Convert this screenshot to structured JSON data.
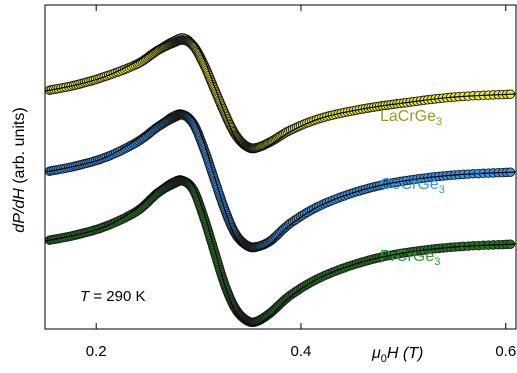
{
  "chart_data": {
    "type": "scatter",
    "title": "",
    "xlabel": "μ0H (T)",
    "xlabel_parts": {
      "mu": "μ",
      "sub": "0",
      "rest": "H (T)"
    },
    "ylabel": "dP/dH (arb. units)",
    "ylabel_parts": {
      "italic": "dP/dH",
      "rest": " (arb. units)"
    },
    "xlim": [
      0.15,
      0.61
    ],
    "ylim": [
      0,
      1
    ],
    "x_ticks": [
      0.2,
      0.4,
      0.6
    ],
    "x_tick_labels": [
      "0.2",
      "0.4",
      "0.6"
    ],
    "y_tick_labels": [],
    "grid": false,
    "legend": "labels beside curves",
    "annotation": {
      "italic": "T",
      "rest": " = 290 K"
    },
    "series": [
      {
        "name": "LaCrGe3",
        "label_base": "LaCrGe",
        "label_sub": "3",
        "marker_color": "#eeee22",
        "text_color": "#999922",
        "x": [
          0.15,
          0.18,
          0.21,
          0.24,
          0.26,
          0.275,
          0.285,
          0.295,
          0.305,
          0.315,
          0.325,
          0.335,
          0.345,
          0.355,
          0.37,
          0.39,
          0.42,
          0.46,
          0.5,
          0.55,
          0.61
        ],
        "y": [
          0.77,
          0.79,
          0.82,
          0.86,
          0.905,
          0.93,
          0.94,
          0.92,
          0.86,
          0.78,
          0.7,
          0.63,
          0.59,
          0.58,
          0.6,
          0.64,
          0.68,
          0.71,
          0.73,
          0.75,
          0.76
        ],
        "fit_y": [
          0.77,
          0.79,
          0.82,
          0.87,
          0.92,
          0.95,
          0.96,
          0.94,
          0.88,
          0.79,
          0.7,
          0.62,
          0.575,
          0.565,
          0.59,
          0.635,
          0.68,
          0.71,
          0.73,
          0.75,
          0.76
        ]
      },
      {
        "name": "CeCrGe3",
        "label_base": "CeCrGe",
        "label_sub": "3",
        "marker_color": "#3399ee",
        "text_color": "#3399ee",
        "x": [
          0.15,
          0.18,
          0.21,
          0.24,
          0.26,
          0.275,
          0.285,
          0.295,
          0.305,
          0.315,
          0.325,
          0.335,
          0.345,
          0.355,
          0.37,
          0.39,
          0.42,
          0.46,
          0.5,
          0.55,
          0.61
        ],
        "y": [
          0.5,
          0.52,
          0.55,
          0.6,
          0.65,
          0.68,
          0.69,
          0.66,
          0.58,
          0.48,
          0.38,
          0.3,
          0.26,
          0.25,
          0.27,
          0.33,
          0.39,
          0.44,
          0.47,
          0.49,
          0.5
        ],
        "fit_y": [
          0.5,
          0.52,
          0.55,
          0.61,
          0.665,
          0.7,
          0.705,
          0.68,
          0.6,
          0.49,
          0.38,
          0.29,
          0.245,
          0.235,
          0.26,
          0.325,
          0.39,
          0.44,
          0.47,
          0.49,
          0.5
        ]
      },
      {
        "name": "PrCrGe3",
        "label_base": "PrCrGe",
        "label_sub": "3",
        "marker_color": "#227722",
        "text_color": "#339933",
        "x": [
          0.15,
          0.18,
          0.21,
          0.24,
          0.26,
          0.275,
          0.285,
          0.295,
          0.305,
          0.315,
          0.325,
          0.335,
          0.345,
          0.355,
          0.37,
          0.39,
          0.42,
          0.46,
          0.5,
          0.55,
          0.61
        ],
        "y": [
          0.27,
          0.29,
          0.32,
          0.37,
          0.43,
          0.46,
          0.47,
          0.44,
          0.35,
          0.24,
          0.13,
          0.05,
          0.01,
          0.0,
          0.03,
          0.09,
          0.15,
          0.2,
          0.23,
          0.25,
          0.26
        ],
        "fit_y": [
          0.27,
          0.29,
          0.32,
          0.38,
          0.445,
          0.48,
          0.485,
          0.455,
          0.365,
          0.25,
          0.13,
          0.04,
          0.0,
          -0.01,
          0.02,
          0.085,
          0.15,
          0.2,
          0.23,
          0.25,
          0.26
        ]
      }
    ]
  }
}
